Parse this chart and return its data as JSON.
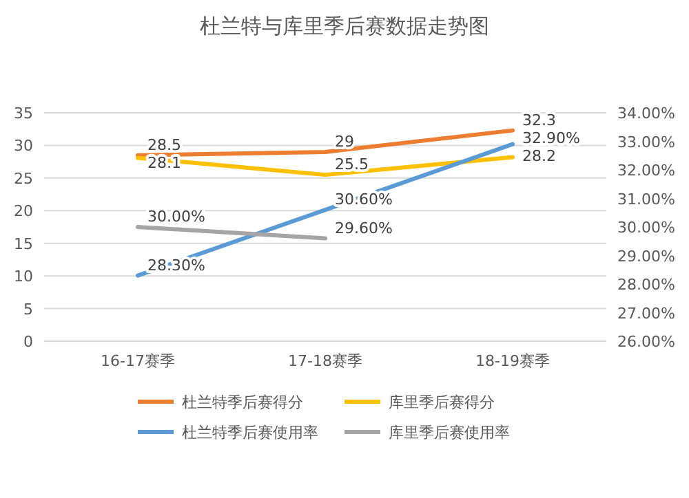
{
  "chart_data": {
    "type": "line",
    "title": "杜兰特与库里季后赛数据走势图",
    "categories": [
      "16-17赛季",
      "17-18赛季",
      "18-19赛季"
    ],
    "series": [
      {
        "name": "杜兰特季后赛得分",
        "color": "#ed7d31",
        "values": [
          28.5,
          29,
          32.3
        ],
        "value_labels": [
          "28.5",
          "29",
          "32.3"
        ]
      },
      {
        "name": "库里季后赛得分",
        "color": "#ffc000",
        "values": [
          28.1,
          25.5,
          28.2
        ],
        "value_labels": [
          "28.1",
          "25.5",
          "28.2"
        ]
      },
      {
        "name": "杜兰特季后赛使用率",
        "color": "#5b9bd5",
        "axis": "y2",
        "values": [
          28.3,
          30.6,
          32.9
        ],
        "value_labels": [
          "28.30%",
          "30.60%",
          "32.90%"
        ]
      },
      {
        "name": "库里季后赛使用率",
        "color": "#a5a5a5",
        "axis": "y2",
        "values": [
          30.0,
          29.6,
          null
        ],
        "value_labels": [
          "30.00%",
          "29.60%",
          null
        ]
      }
    ],
    "ylim": [
      0,
      35
    ],
    "yticks": [
      0,
      5,
      10,
      15,
      20,
      25,
      30,
      35
    ],
    "y2lim": [
      26,
      34
    ],
    "y2ticks": [
      {
        "value": 26,
        "label": "26.00%"
      },
      {
        "value": 27,
        "label": "27.00%"
      },
      {
        "value": 28,
        "label": "28.00%"
      },
      {
        "value": 29,
        "label": "29.00%"
      },
      {
        "value": 30,
        "label": "30.00%"
      },
      {
        "value": 31,
        "label": "31.00%"
      },
      {
        "value": 32,
        "label": "32.00%"
      },
      {
        "value": 33,
        "label": "33.00%"
      },
      {
        "value": 34,
        "label": "34.00%"
      }
    ],
    "grid": "y",
    "legend": "bottom",
    "marker": "none",
    "line_style": "solid"
  }
}
